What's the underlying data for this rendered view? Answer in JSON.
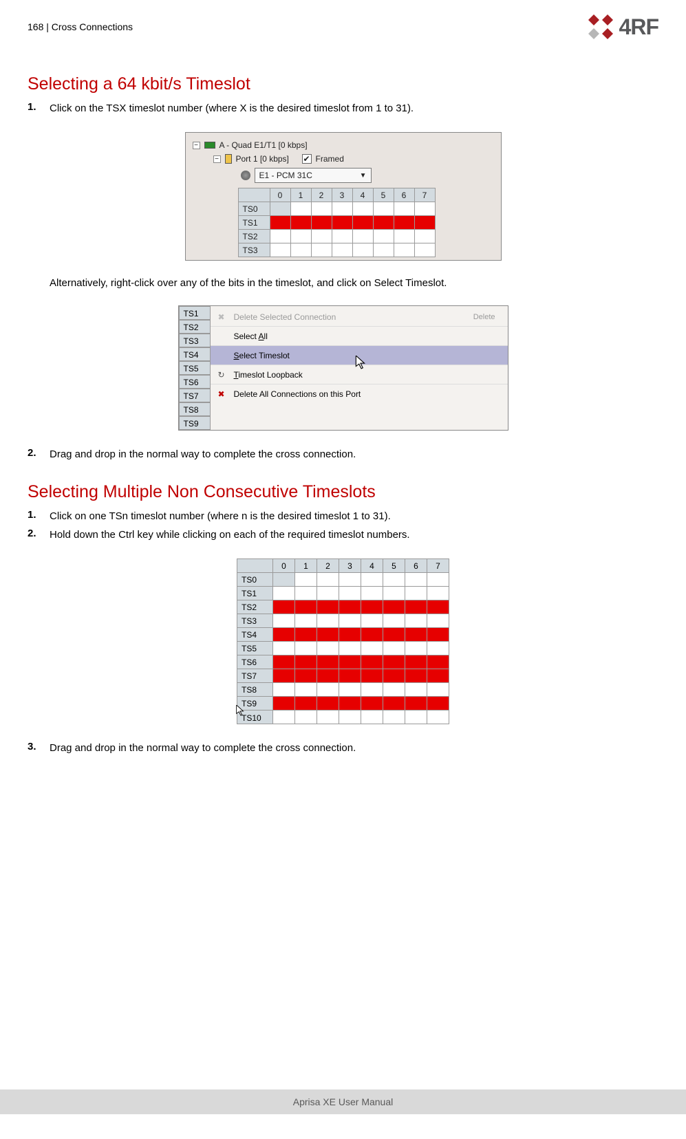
{
  "header": {
    "page_number": "168",
    "section": "Cross Connections",
    "logo_text": "4RF",
    "logo_colors": [
      "#a81f23",
      "#a81f23",
      "#b7b7b7",
      "#a81f23"
    ]
  },
  "section1": {
    "title": "Selecting a 64 kbit/s Timeslot",
    "step1_num": "1.",
    "step1_text": "Click on the TSX timeslot number (where X is the desired timeslot from 1 to 31).",
    "alt_text": "Alternatively, right-click over any of the bits in the timeslot, and click on Select Timeslot.",
    "step2_num": "2.",
    "step2_text": "Drag and drop in the normal way to complete the cross connection."
  },
  "fig1": {
    "tree_node_a": "A - Quad E1/T1 [0 kbps]",
    "tree_port": "Port 1 [0 kbps]",
    "framed_label": "Framed",
    "check_mark": "✔",
    "dropdown": "E1 - PCM 31C",
    "cols": [
      "0",
      "1",
      "2",
      "3",
      "4",
      "5",
      "6",
      "7"
    ],
    "rows": [
      "TS0",
      "TS1",
      "TS2",
      "TS3"
    ],
    "red_row": "TS1",
    "colors": {
      "cell_bg": "#d3dbe0",
      "red": "#e60000",
      "white": "#ffffff",
      "border": "#9a9a9a"
    }
  },
  "fig2": {
    "rows": [
      "TS1",
      "TS2",
      "TS3",
      "TS4",
      "TS5",
      "TS6",
      "TS7",
      "TS8",
      "TS9"
    ],
    "menu": [
      {
        "label": "Delete Selected Connection",
        "disabled": true,
        "icon": "✖",
        "shortcut": "Delete"
      },
      {
        "label": "Select All",
        "underline_idx": 7
      },
      {
        "label": "Select Timeslot",
        "underline_idx": 0,
        "selected": true
      },
      {
        "label": "Timeslot Loopback",
        "underline_idx": 0,
        "icon": "↻"
      },
      {
        "label": "Delete All Connections on this Port",
        "icon": "✖",
        "icon_color": "#c00000"
      }
    ],
    "colors": {
      "sel_bg": "#b5b5d6",
      "disabled": "#9a9a9a"
    }
  },
  "section2": {
    "title": "Selecting Multiple Non Consecutive Timeslots",
    "step1_num": "1.",
    "step1_text": "Click on one TSn timeslot number (where n is the desired timeslot 1 to 31).",
    "step2_num": "2.",
    "step2_text": "Hold down the Ctrl key while clicking on each of the required timeslot numbers.",
    "step3_num": "3.",
    "step3_text": "Drag and drop in the normal way to complete the cross connection."
  },
  "fig3": {
    "cols": [
      "0",
      "1",
      "2",
      "3",
      "4",
      "5",
      "6",
      "7"
    ],
    "rows": [
      {
        "label": "TS0",
        "pattern": "bwwwwwww"
      },
      {
        "label": "TS1",
        "pattern": "wwwwwwww"
      },
      {
        "label": "TS2",
        "pattern": "rrrrrrrr"
      },
      {
        "label": "TS3",
        "pattern": "wwwwwwww"
      },
      {
        "label": "TS4",
        "pattern": "rrrrrrrr"
      },
      {
        "label": "TS5",
        "pattern": "wwwwwwww"
      },
      {
        "label": "TS6",
        "pattern": "rrrrrrrr"
      },
      {
        "label": "TS7",
        "pattern": "rrrrrrrr"
      },
      {
        "label": "TS8",
        "pattern": "wwwwwwww"
      },
      {
        "label": "TS9",
        "pattern": "rrrrrrrr"
      },
      {
        "label": "TS10",
        "pattern": "wwwwwwww",
        "cursor": true,
        "partial": true
      }
    ],
    "colors": {
      "red": "#e60000",
      "white": "#ffffff",
      "blue": "#d3dbe0"
    }
  },
  "footer": {
    "text": "Aprisa XE User Manual",
    "bg": "#d9d9d9",
    "fg": "#595959"
  }
}
